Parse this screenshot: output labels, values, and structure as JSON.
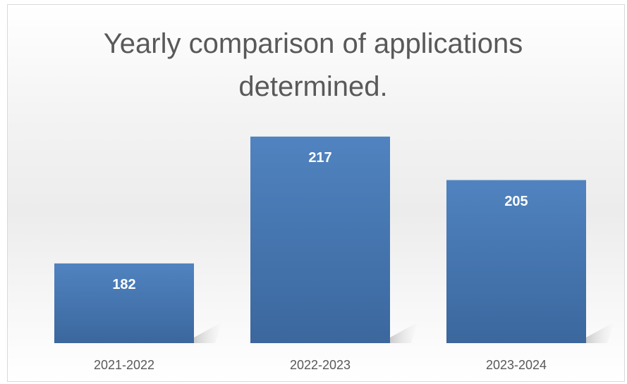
{
  "chart_data": {
    "type": "bar",
    "title": "Yearly comparison of applications determined.",
    "categories": [
      "2021-2022",
      "2022-2023",
      "2023-2024"
    ],
    "values": [
      182,
      217,
      205
    ],
    "color": "#4a7ab5",
    "ylim": [
      160,
      230
    ]
  }
}
